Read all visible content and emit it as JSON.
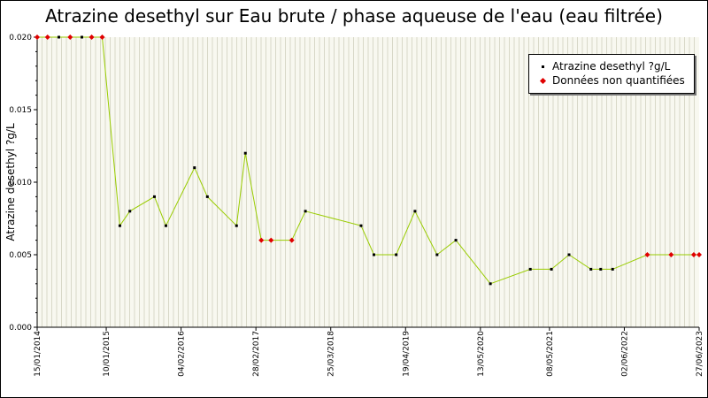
{
  "chart_data": {
    "type": "line",
    "title": "Atrazine desethyl sur Eau brute / phase aqueuse de l'eau (eau filtrée)",
    "ylabel": "Atrazine desethyl ?g/L",
    "xlabel": "",
    "ylim": [
      0,
      0.02
    ],
    "yticks": [
      "0.000",
      "0.005",
      "0.010",
      "0.015",
      "0.020"
    ],
    "ytick_values": [
      0,
      0.005,
      0.01,
      0.015,
      0.02
    ],
    "xlim": [
      "2014-01-15",
      "2023-06-27"
    ],
    "xticks": [
      {
        "label": "15/01/2014",
        "date": "2014-01-15"
      },
      {
        "label": "10/01/2015",
        "date": "2015-01-10"
      },
      {
        "label": "04/02/2016",
        "date": "2016-02-04"
      },
      {
        "label": "28/02/2017",
        "date": "2017-02-28"
      },
      {
        "label": "25/03/2018",
        "date": "2018-03-25"
      },
      {
        "label": "19/04/2019",
        "date": "2019-04-19"
      },
      {
        "label": "13/05/2020",
        "date": "2020-05-13"
      },
      {
        "label": "08/05/2021",
        "date": "2021-05-08"
      },
      {
        "label": "02/06/2022",
        "date": "2022-06-02"
      },
      {
        "label": "27/06/2023",
        "date": "2023-06-27"
      }
    ],
    "grid": true,
    "legend_position": "top-right",
    "colors": {
      "line": "#99cc00",
      "quantified": "#000000",
      "non_quantified": "#e00000",
      "grid": "#d8d8c8",
      "plot_bg": "#f8f8f0"
    },
    "series": [
      {
        "name": "Atrazine desethyl ?g/L",
        "points": [
          {
            "x": "2014-01-15",
            "y": 0.02,
            "q": false
          },
          {
            "x": "2014-03-10",
            "y": 0.02,
            "q": false
          },
          {
            "x": "2014-05-08",
            "y": 0.02,
            "q": true
          },
          {
            "x": "2014-07-06",
            "y": 0.02,
            "q": false
          },
          {
            "x": "2014-09-05",
            "y": 0.02,
            "q": true
          },
          {
            "x": "2014-10-26",
            "y": 0.02,
            "q": false
          },
          {
            "x": "2014-12-20",
            "y": 0.02,
            "q": false
          },
          {
            "x": "2015-03-22",
            "y": 0.007,
            "q": true
          },
          {
            "x": "2015-05-13",
            "y": 0.008,
            "q": true
          },
          {
            "x": "2015-09-18",
            "y": 0.009,
            "q": true
          },
          {
            "x": "2015-11-17",
            "y": 0.007,
            "q": true
          },
          {
            "x": "2016-04-14",
            "y": 0.011,
            "q": true
          },
          {
            "x": "2016-06-20",
            "y": 0.009,
            "q": true
          },
          {
            "x": "2016-11-19",
            "y": 0.007,
            "q": true
          },
          {
            "x": "2017-01-04",
            "y": 0.012,
            "q": true
          },
          {
            "x": "2017-03-28",
            "y": 0.006,
            "q": false
          },
          {
            "x": "2017-05-18",
            "y": 0.006,
            "q": false
          },
          {
            "x": "2017-09-03",
            "y": 0.006,
            "q": false
          },
          {
            "x": "2017-11-13",
            "y": 0.008,
            "q": true
          },
          {
            "x": "2018-08-30",
            "y": 0.007,
            "q": true
          },
          {
            "x": "2018-11-05",
            "y": 0.005,
            "q": true
          },
          {
            "x": "2019-03-01",
            "y": 0.005,
            "q": true
          },
          {
            "x": "2019-06-07",
            "y": 0.008,
            "q": true
          },
          {
            "x": "2019-09-30",
            "y": 0.005,
            "q": true
          },
          {
            "x": "2020-01-06",
            "y": 0.006,
            "q": true
          },
          {
            "x": "2020-07-04",
            "y": 0.003,
            "q": true
          },
          {
            "x": "2021-01-28",
            "y": 0.004,
            "q": true
          },
          {
            "x": "2021-05-18",
            "y": 0.004,
            "q": true
          },
          {
            "x": "2021-08-18",
            "y": 0.005,
            "q": true
          },
          {
            "x": "2021-12-10",
            "y": 0.004,
            "q": true
          },
          {
            "x": "2022-01-30",
            "y": 0.004,
            "q": true
          },
          {
            "x": "2022-04-02",
            "y": 0.004,
            "q": true
          },
          {
            "x": "2022-09-30",
            "y": 0.005,
            "q": false
          },
          {
            "x": "2023-02-01",
            "y": 0.005,
            "q": false
          },
          {
            "x": "2023-05-30",
            "y": 0.005,
            "q": false
          },
          {
            "x": "2023-06-27",
            "y": 0.005,
            "q": false
          }
        ]
      }
    ],
    "legend": [
      {
        "label": "Atrazine desethyl ?g/L",
        "marker": "black-point"
      },
      {
        "label": "Données non quantifiées",
        "marker": "red-diamond"
      }
    ]
  }
}
